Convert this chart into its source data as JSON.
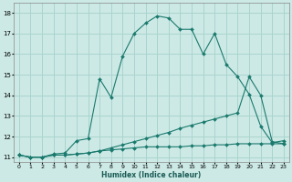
{
  "title": "",
  "xlabel": "Humidex (Indice chaleur)",
  "bg_color": "#cce9e5",
  "grid_color": "#aad4cf",
  "line_color": "#1a7a6e",
  "series1_x": [
    0,
    1,
    2,
    3,
    4,
    5,
    6,
    7,
    8,
    9,
    10,
    11,
    12,
    13,
    14,
    15,
    16,
    17,
    18,
    19,
    20,
    21,
    22,
    23
  ],
  "series1_y": [
    11.1,
    11.0,
    11.0,
    11.15,
    11.2,
    11.8,
    11.9,
    14.8,
    13.9,
    15.9,
    17.0,
    17.5,
    17.85,
    17.75,
    17.2,
    17.2,
    16.0,
    17.0,
    15.5,
    14.9,
    14.05,
    12.5,
    11.7,
    11.8
  ],
  "series2_x": [
    0,
    1,
    2,
    3,
    4,
    5,
    6,
    7,
    8,
    9,
    10,
    11,
    12,
    13,
    14,
    15,
    16,
    17,
    18,
    19,
    20,
    21,
    22,
    23
  ],
  "series2_y": [
    11.1,
    11.0,
    11.0,
    11.1,
    11.1,
    11.15,
    11.2,
    11.3,
    11.45,
    11.6,
    11.75,
    11.9,
    12.05,
    12.2,
    12.4,
    12.55,
    12.7,
    12.85,
    13.0,
    13.15,
    14.9,
    14.0,
    11.75,
    11.65
  ],
  "series3_x": [
    0,
    1,
    2,
    3,
    4,
    5,
    6,
    7,
    8,
    9,
    10,
    11,
    12,
    13,
    14,
    15,
    16,
    17,
    18,
    19,
    20,
    21,
    22,
    23
  ],
  "series3_y": [
    11.1,
    11.0,
    11.0,
    11.1,
    11.1,
    11.15,
    11.2,
    11.3,
    11.35,
    11.4,
    11.45,
    11.5,
    11.5,
    11.5,
    11.5,
    11.55,
    11.55,
    11.6,
    11.6,
    11.65,
    11.65,
    11.65,
    11.65,
    11.65
  ],
  "ylim": [
    10.75,
    18.5
  ],
  "xlim": [
    -0.5,
    23.5
  ],
  "yticks": [
    11,
    12,
    13,
    14,
    15,
    16,
    17,
    18
  ],
  "xticks": [
    0,
    1,
    2,
    3,
    4,
    5,
    6,
    7,
    8,
    9,
    10,
    11,
    12,
    13,
    14,
    15,
    16,
    17,
    18,
    19,
    20,
    21,
    22,
    23
  ]
}
